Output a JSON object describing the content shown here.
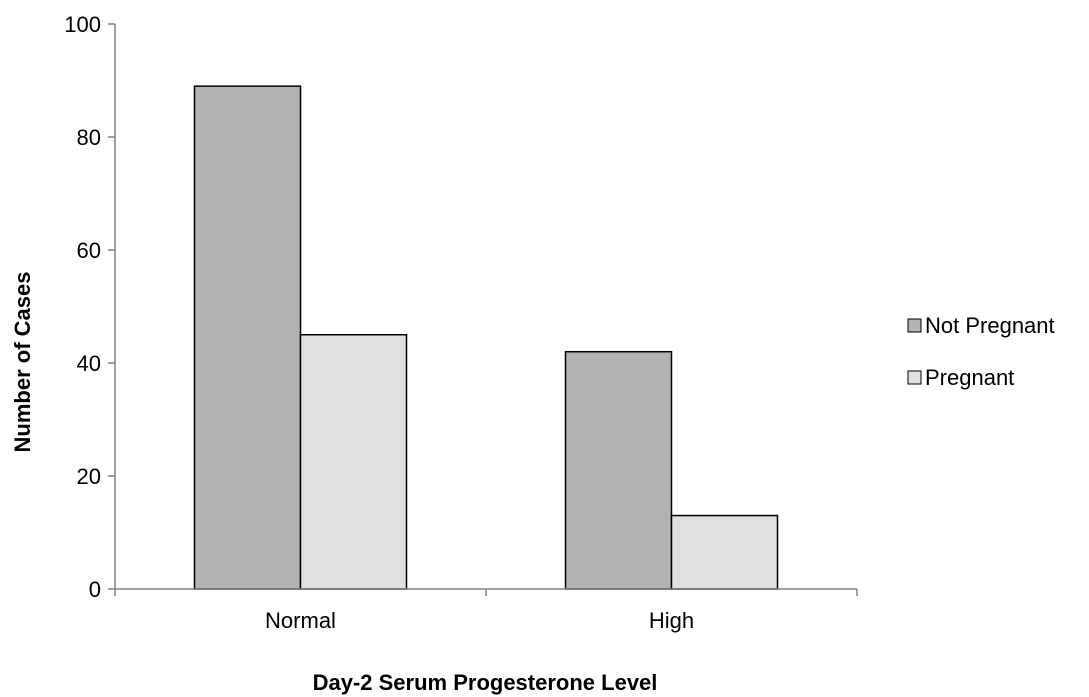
{
  "chart_data": {
    "type": "bar",
    "categories": [
      "Normal",
      "High"
    ],
    "series": [
      {
        "name": "Not Pregnant",
        "values": [
          89,
          42
        ],
        "color": "#b3b3b3"
      },
      {
        "name": "Pregnant",
        "values": [
          45,
          13
        ],
        "color": "#e0e0e0"
      }
    ],
    "xlabel": "Day-2 Serum Progesterone Level",
    "ylabel": "Number of Cases",
    "ylim": [
      0,
      100
    ],
    "yticks": [
      "0",
      "20",
      "40",
      "60",
      "80",
      "100"
    ],
    "grid": false,
    "legend_position": "right"
  }
}
